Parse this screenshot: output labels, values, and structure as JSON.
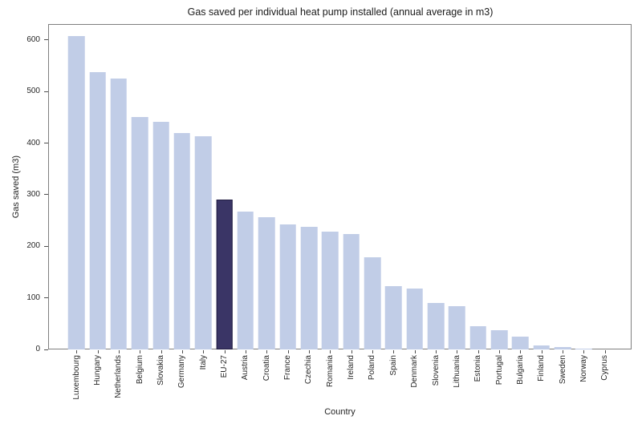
{
  "chart_data": {
    "type": "bar",
    "title": "Gas saved per individual heat pump installed (annual average in m3)",
    "xlabel": "Country",
    "ylabel": "Gas saved (m3)",
    "ylim": [
      0,
      631
    ],
    "yticks": [
      0,
      100,
      200,
      300,
      400,
      500,
      600
    ],
    "grid": false,
    "legend": null,
    "categories": [
      "Luxembourg",
      "Hungary",
      "Netherlands",
      "Belgium",
      "Slovakia",
      "Germany",
      "Italy",
      "EU-27",
      "Austria",
      "Croatia",
      "France",
      "Czechia",
      "Romania",
      "Ireland",
      "Poland",
      "Spain",
      "Denmark",
      "Slovenia",
      "Lithuania",
      "Estonia",
      "Portugal",
      "Bulgaria",
      "Finland",
      "Sweden",
      "Norway",
      "Cyprus"
    ],
    "values": [
      608,
      537,
      526,
      450,
      442,
      420,
      414,
      291,
      267,
      256,
      242,
      238,
      229,
      224,
      178,
      123,
      118,
      90,
      84,
      45,
      38,
      25,
      8,
      4,
      1,
      0
    ],
    "highlight_category": "EU-27",
    "colors": {
      "bar": "#c1cde7",
      "highlight": "#3a3566",
      "highlight_border": "#211d42",
      "frame": "#7f7f7f",
      "tick": "#4d4d4d",
      "text": "#262626"
    }
  }
}
